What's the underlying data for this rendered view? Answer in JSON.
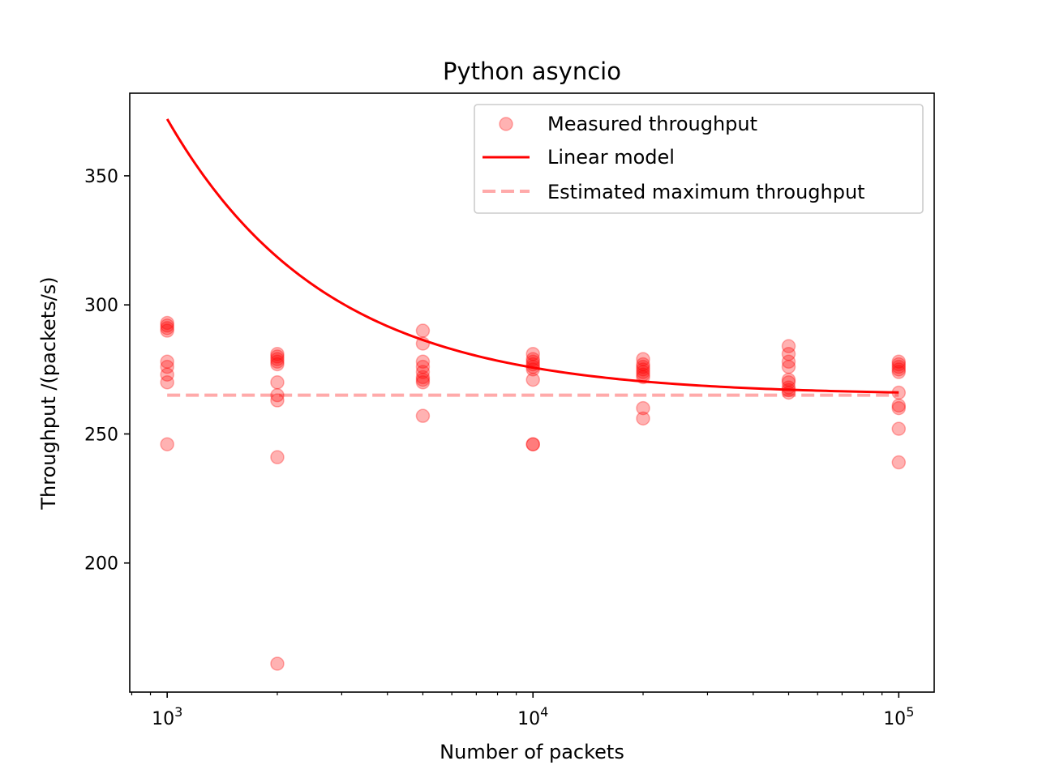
{
  "chart_data": {
    "type": "scatter",
    "title": "Python asyncio",
    "xlabel": "Number of packets",
    "ylabel": "Throughput /(packets/s)",
    "x_scale": "log",
    "xlim": [
      790,
      125000
    ],
    "ylim": [
      150,
      382
    ],
    "x_ticks": [
      {
        "value": 1000,
        "base": "10",
        "exp": "3"
      },
      {
        "value": 10000,
        "base": "10",
        "exp": "4"
      },
      {
        "value": 100000,
        "base": "10",
        "exp": "5"
      }
    ],
    "y_ticks": [
      {
        "value": 200,
        "label": "200"
      },
      {
        "value": 250,
        "label": "250"
      },
      {
        "value": 300,
        "label": "300"
      },
      {
        "value": 350,
        "label": "350"
      }
    ],
    "grid": false,
    "legend_position": "top-right",
    "legend": [
      {
        "label": "Measured throughput",
        "kind": "marker"
      },
      {
        "label": "Linear model",
        "kind": "line"
      },
      {
        "label": "Estimated maximum throughput",
        "kind": "dashed"
      }
    ],
    "measured": [
      {
        "x": 1000,
        "y": [
          293,
          292,
          291,
          290,
          278,
          276,
          273,
          270,
          246
        ]
      },
      {
        "x": 2000,
        "y": [
          281,
          280,
          279,
          278,
          277,
          270,
          265,
          263,
          241,
          161
        ]
      },
      {
        "x": 5000,
        "y": [
          290,
          285,
          278,
          276,
          274,
          272,
          271,
          270,
          257
        ]
      },
      {
        "x": 10000,
        "y": [
          281,
          279,
          278,
          277,
          276,
          275,
          271,
          246,
          246
        ]
      },
      {
        "x": 20000,
        "y": [
          279,
          277,
          276,
          275,
          274,
          273,
          272,
          260,
          256
        ]
      },
      {
        "x": 50000,
        "y": [
          284,
          281,
          278,
          276,
          271,
          270,
          268,
          267,
          266
        ]
      },
      {
        "x": 100000,
        "y": [
          278,
          277,
          276,
          275,
          274,
          266,
          261,
          260,
          252,
          239
        ]
      }
    ],
    "linear_model": {
      "x_range": [
        1000,
        100000
      ],
      "asymptote": 265,
      "coefficient": 107000
    },
    "max_throughput": 265,
    "colors": {
      "marker": "#ff0000",
      "line": "#ff0000",
      "dashed": "#ffaaaa"
    }
  }
}
